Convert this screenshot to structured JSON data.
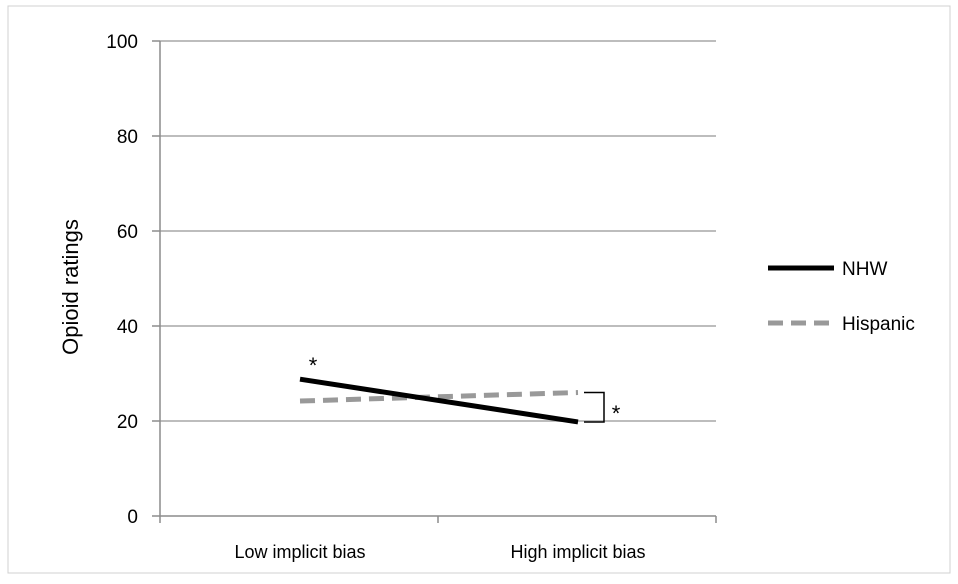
{
  "chart_data": {
    "type": "line",
    "title": "",
    "xlabel": "",
    "ylabel": "Opioid ratings",
    "categories": [
      "Low implicit bias",
      "High implicit bias"
    ],
    "ylim": [
      0,
      100
    ],
    "yticks": [
      0,
      20,
      40,
      60,
      80,
      100
    ],
    "grid": true,
    "legend_position": "right",
    "series": [
      {
        "name": "NHW",
        "values": [
          28.8,
          19.8
        ],
        "color": "#000000",
        "style": "solid"
      },
      {
        "name": "Hispanic",
        "values": [
          24.2,
          26.0
        ],
        "color": "#999999",
        "style": "dashed"
      }
    ],
    "annotations": [
      {
        "text": "*",
        "note": "significance marker above NHW at Low implicit bias"
      },
      {
        "text": "*",
        "note": "significance bracket between series at High implicit bias"
      }
    ]
  }
}
